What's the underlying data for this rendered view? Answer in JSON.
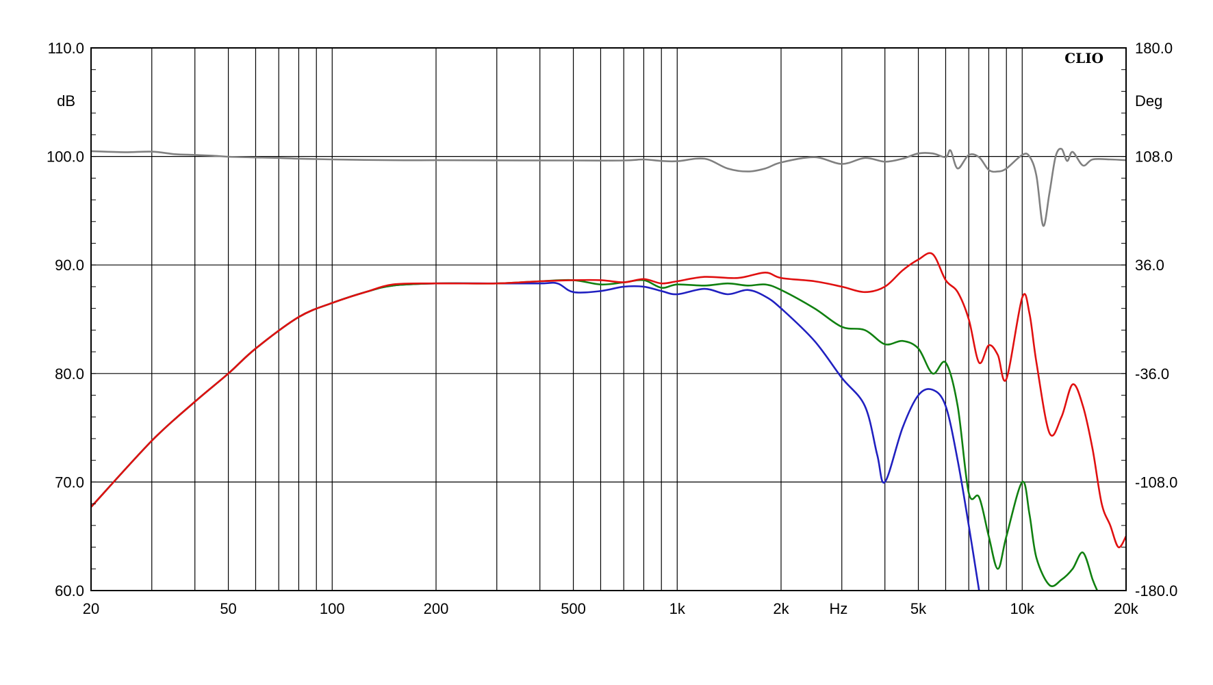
{
  "chart_data": {
    "type": "line",
    "brand": "CLIO",
    "x_scale": "log",
    "xlim": [
      20,
      20000
    ],
    "xlabel": "Hz",
    "x_tick_values": [
      20,
      50,
      100,
      200,
      500,
      1000,
      2000,
      5000,
      10000,
      20000
    ],
    "x_tick_labels": [
      "20",
      "50",
      "100",
      "200",
      "500",
      "1k",
      "2k",
      "5k",
      "10k",
      "20k"
    ],
    "ylim": [
      60,
      110
    ],
    "ylabel": "dB",
    "y_tick_values": [
      60,
      70,
      80,
      90,
      100,
      110
    ],
    "y_tick_labels": [
      "60.0",
      "70.0",
      "80.0",
      "90.0",
      "100.0",
      "110.0"
    ],
    "y2lim": [
      -180,
      180
    ],
    "y2label": "Deg",
    "y2_tick_values": [
      -180,
      -108,
      -36,
      36,
      108,
      180
    ],
    "y2_tick_labels": [
      "-180.0",
      "-108.0",
      "-36.0",
      "36.0",
      "108.0",
      "180.0"
    ],
    "grid": true,
    "series": [
      {
        "color": "#808080",
        "axis": "y2",
        "points": [
          [
            20,
            111.5
          ],
          [
            25,
            110.8
          ],
          [
            30,
            111.2
          ],
          [
            35,
            109.5
          ],
          [
            40,
            109
          ],
          [
            45,
            108.5
          ],
          [
            50,
            107.8
          ],
          [
            60,
            107.3
          ],
          [
            70,
            107
          ],
          [
            80,
            106.5
          ],
          [
            100,
            106
          ],
          [
            150,
            105.5
          ],
          [
            200,
            105.5
          ],
          [
            300,
            105.4
          ],
          [
            500,
            105.3
          ],
          [
            700,
            105.3
          ],
          [
            800,
            106
          ],
          [
            900,
            105
          ],
          [
            1000,
            104.8
          ],
          [
            1200,
            106.5
          ],
          [
            1400,
            100
          ],
          [
            1600,
            98
          ],
          [
            1800,
            100
          ],
          [
            2000,
            104
          ],
          [
            2500,
            107.5
          ],
          [
            3000,
            103
          ],
          [
            3500,
            107
          ],
          [
            4000,
            104.5
          ],
          [
            4500,
            106.5
          ],
          [
            5000,
            110
          ],
          [
            5500,
            110
          ],
          [
            6000,
            107.5
          ],
          [
            6200,
            112
          ],
          [
            6500,
            100
          ],
          [
            7000,
            109
          ],
          [
            7500,
            107.5
          ],
          [
            8000,
            99
          ],
          [
            8500,
            98
          ],
          [
            9000,
            100
          ],
          [
            10000,
            109
          ],
          [
            10500,
            108
          ],
          [
            11000,
            95
          ],
          [
            11500,
            62
          ],
          [
            12000,
            84
          ],
          [
            12500,
            108
          ],
          [
            13000,
            113
          ],
          [
            13500,
            105
          ],
          [
            14000,
            111
          ],
          [
            15000,
            102
          ],
          [
            16000,
            106
          ],
          [
            18000,
            106
          ],
          [
            20000,
            105.5
          ]
        ]
      },
      {
        "color": "#2020c0",
        "axis": "y",
        "points": [
          [
            20,
            67.7
          ],
          [
            30,
            73.8
          ],
          [
            40,
            77.4
          ],
          [
            50,
            80
          ],
          [
            60,
            82.3
          ],
          [
            80,
            85.2
          ],
          [
            100,
            86.5
          ],
          [
            125,
            87.5
          ],
          [
            150,
            88.1
          ],
          [
            200,
            88.3
          ],
          [
            300,
            88.3
          ],
          [
            400,
            88.3
          ],
          [
            450,
            88.3
          ],
          [
            500,
            87.5
          ],
          [
            600,
            87.6
          ],
          [
            700,
            88
          ],
          [
            800,
            88
          ],
          [
            900,
            87.6
          ],
          [
            1000,
            87.3
          ],
          [
            1200,
            87.8
          ],
          [
            1400,
            87.3
          ],
          [
            1600,
            87.7
          ],
          [
            1800,
            87.1
          ],
          [
            2000,
            86
          ],
          [
            2500,
            83
          ],
          [
            3000,
            79.6
          ],
          [
            3500,
            77
          ],
          [
            3800,
            72.5
          ],
          [
            4000,
            70
          ],
          [
            4500,
            75
          ],
          [
            5000,
            78
          ],
          [
            5500,
            78.5
          ],
          [
            6000,
            77
          ],
          [
            6500,
            72
          ],
          [
            7000,
            66
          ],
          [
            7500,
            60
          ]
        ]
      },
      {
        "color": "#108010",
        "axis": "y",
        "points": [
          [
            20,
            67.7
          ],
          [
            30,
            73.8
          ],
          [
            40,
            77.4
          ],
          [
            50,
            80
          ],
          [
            60,
            82.3
          ],
          [
            80,
            85.2
          ],
          [
            100,
            86.5
          ],
          [
            125,
            87.5
          ],
          [
            150,
            88.1
          ],
          [
            200,
            88.3
          ],
          [
            300,
            88.3
          ],
          [
            400,
            88.5
          ],
          [
            500,
            88.6
          ],
          [
            600,
            88.2
          ],
          [
            700,
            88.4
          ],
          [
            800,
            88.6
          ],
          [
            900,
            87.9
          ],
          [
            1000,
            88.2
          ],
          [
            1200,
            88.1
          ],
          [
            1400,
            88.3
          ],
          [
            1600,
            88.1
          ],
          [
            1800,
            88.2
          ],
          [
            2000,
            87.7
          ],
          [
            2500,
            86
          ],
          [
            3000,
            84.3
          ],
          [
            3500,
            84
          ],
          [
            4000,
            82.7
          ],
          [
            4500,
            83
          ],
          [
            5000,
            82.3
          ],
          [
            5500,
            80
          ],
          [
            6000,
            81
          ],
          [
            6500,
            77
          ],
          [
            7000,
            69
          ],
          [
            7500,
            68.6
          ],
          [
            8000,
            65
          ],
          [
            8500,
            62
          ],
          [
            9000,
            65
          ],
          [
            10000,
            70
          ],
          [
            10500,
            67
          ],
          [
            11000,
            63
          ],
          [
            12000,
            60.5
          ],
          [
            13000,
            61
          ],
          [
            14000,
            62
          ],
          [
            15000,
            63.5
          ],
          [
            16000,
            61
          ],
          [
            16500,
            60
          ]
        ]
      },
      {
        "color": "#e01010",
        "axis": "y",
        "points": [
          [
            20,
            67.7
          ],
          [
            30,
            73.8
          ],
          [
            40,
            77.4
          ],
          [
            50,
            80
          ],
          [
            60,
            82.3
          ],
          [
            80,
            85.2
          ],
          [
            100,
            86.5
          ],
          [
            125,
            87.5
          ],
          [
            150,
            88.2
          ],
          [
            200,
            88.3
          ],
          [
            300,
            88.3
          ],
          [
            400,
            88.5
          ],
          [
            500,
            88.6
          ],
          [
            600,
            88.6
          ],
          [
            700,
            88.4
          ],
          [
            800,
            88.7
          ],
          [
            900,
            88.3
          ],
          [
            1000,
            88.5
          ],
          [
            1200,
            88.9
          ],
          [
            1500,
            88.8
          ],
          [
            1800,
            89.3
          ],
          [
            2000,
            88.8
          ],
          [
            2500,
            88.5
          ],
          [
            3000,
            88
          ],
          [
            3500,
            87.5
          ],
          [
            4000,
            88
          ],
          [
            4500,
            89.5
          ],
          [
            5000,
            90.5
          ],
          [
            5500,
            91
          ],
          [
            6000,
            88.6
          ],
          [
            6500,
            87.5
          ],
          [
            7000,
            85
          ],
          [
            7500,
            81
          ],
          [
            8000,
            82.6
          ],
          [
            8500,
            81.7
          ],
          [
            9000,
            79.5
          ],
          [
            10000,
            87
          ],
          [
            10500,
            85.5
          ],
          [
            11000,
            81
          ],
          [
            12000,
            74.5
          ],
          [
            13000,
            76
          ],
          [
            14000,
            79
          ],
          [
            15000,
            77
          ],
          [
            16000,
            73
          ],
          [
            17000,
            68
          ],
          [
            18000,
            66
          ],
          [
            19000,
            64
          ],
          [
            20000,
            65
          ]
        ]
      }
    ]
  }
}
